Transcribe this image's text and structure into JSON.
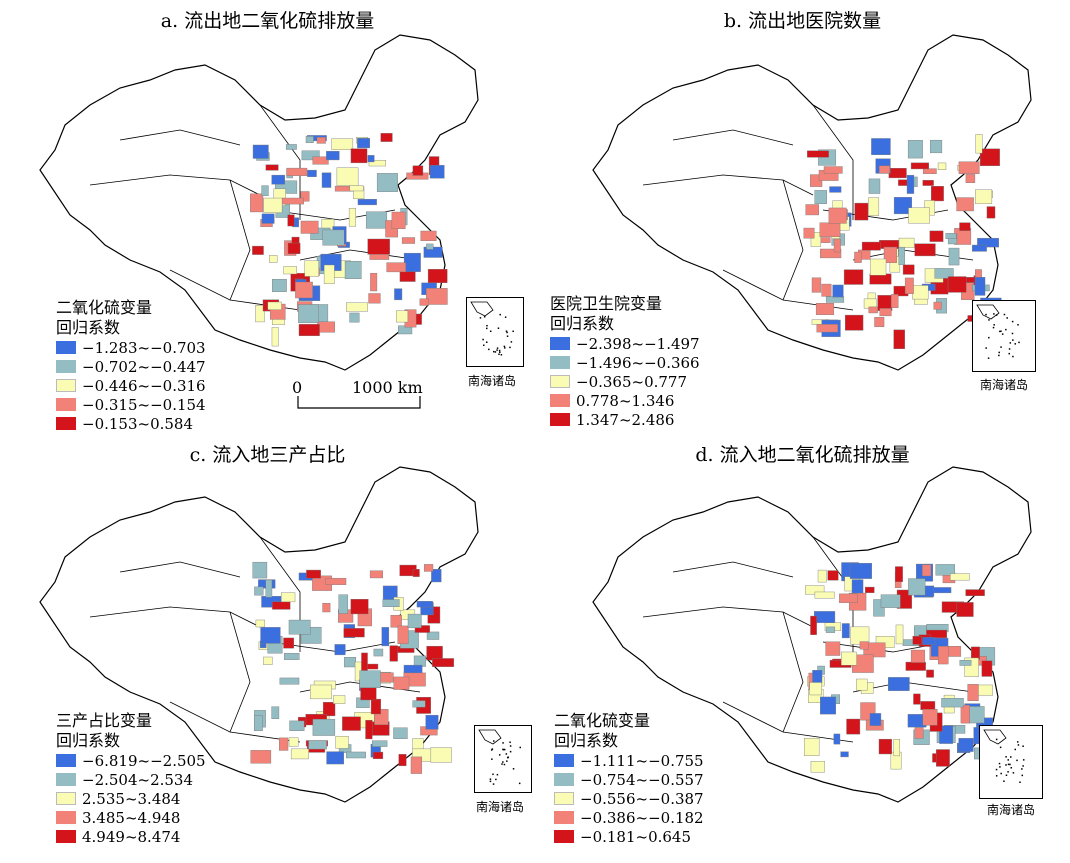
{
  "colors": {
    "blue": "#3b6fe0",
    "teal": "#93bcc3",
    "yellow": "#fafcb4",
    "salmon": "#f28278",
    "red": "#d3141b"
  },
  "inset_label": "南海诸岛",
  "scale": {
    "zero": "0",
    "distance": "1000 km"
  },
  "panels": [
    {
      "title": "a. 流出地二氧化硫排放量",
      "legend_title": [
        "二氧化硫变量",
        "回归系数"
      ],
      "classes": [
        "−1.283~−0.703",
        "−0.702~−0.447",
        "−0.446~−0.316",
        "−0.315~−0.154",
        "−0.153~0.584"
      ]
    },
    {
      "title": "b. 流出地医院数量",
      "legend_title": [
        "医院卫生院变量",
        "回归系数"
      ],
      "classes": [
        "−2.398~−1.497",
        "−1.496~−0.366",
        "−0.365~0.777",
        "0.778~1.346",
        "1.347~2.486"
      ]
    },
    {
      "title": "c. 流入地三产占比",
      "legend_title": [
        "三产占比变量",
        "回归系数"
      ],
      "classes": [
        "−6.819~−2.505",
        "−2.504~2.534",
        "2.535~3.484",
        "3.485~4.948",
        "4.949~8.474"
      ]
    },
    {
      "title": "d. 流入地二氧化硫排放量",
      "legend_title": [
        "二氧化硫变量",
        "回归系数"
      ],
      "classes": [
        "−1.111~−0.755",
        "−0.754~−0.557",
        "−0.556~−0.387",
        "−0.386~−0.182",
        "−0.181~0.645"
      ]
    }
  ]
}
